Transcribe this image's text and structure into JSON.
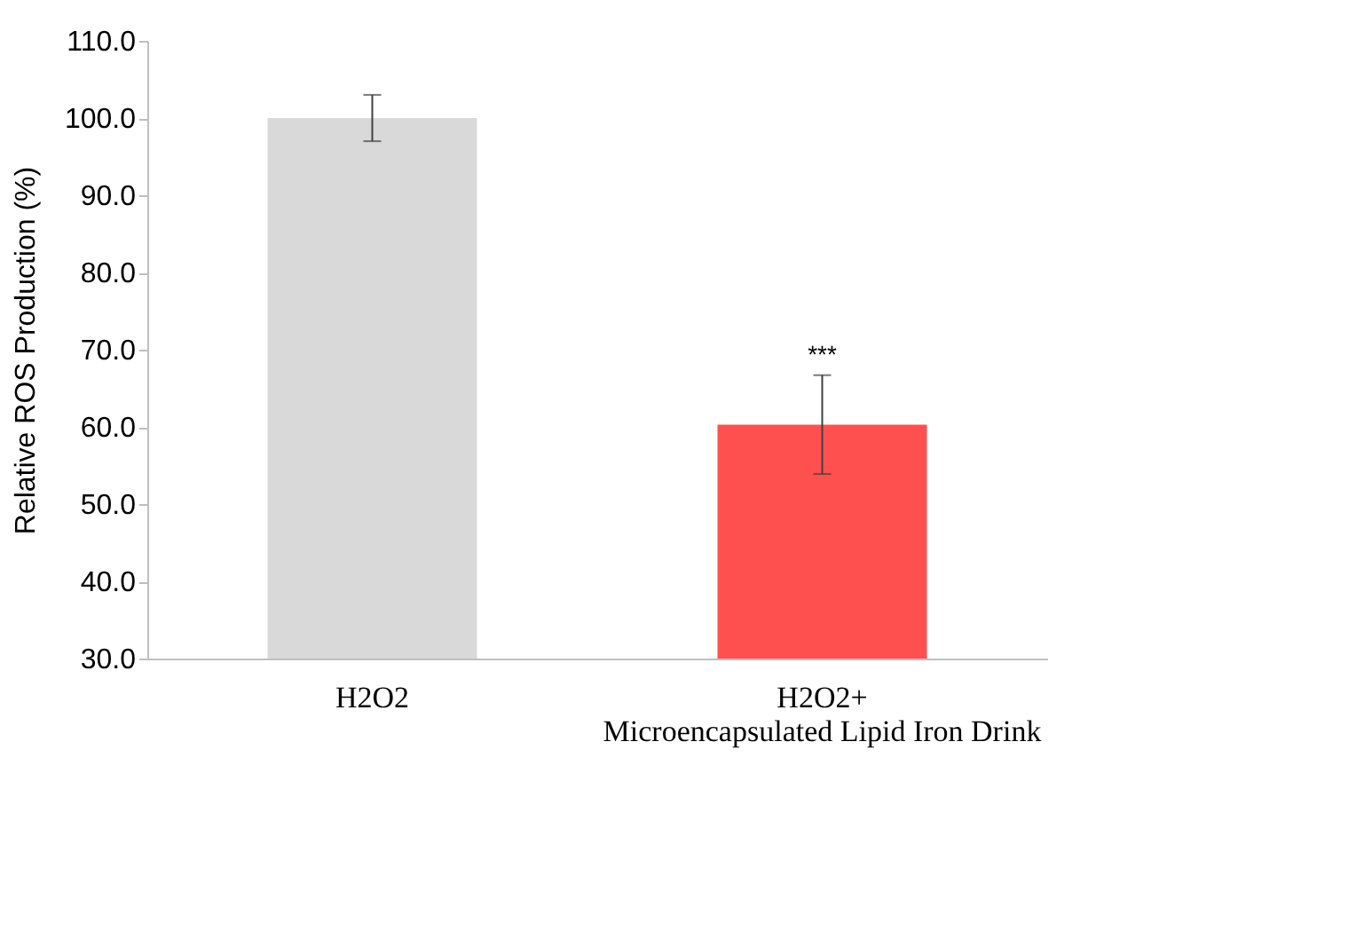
{
  "chart_data": {
    "type": "bar",
    "categories": [
      "H2O2",
      "H2O2+\nMicroencapsulated  Lipid Iron Drink"
    ],
    "values": [
      100.0,
      60.3
    ],
    "colors": [
      "#d9d9d9",
      "#ff5050"
    ],
    "errors": [
      3.0,
      6.4
    ],
    "ylabel": "Relative ROS Production (%)",
    "ylim": [
      30,
      110
    ],
    "yticks": [
      {
        "value": 30,
        "label": "30.0"
      },
      {
        "value": 40,
        "label": "40.0"
      },
      {
        "value": 50,
        "label": "50.0"
      },
      {
        "value": 60,
        "label": "60.0"
      },
      {
        "value": 70,
        "label": "70.0"
      },
      {
        "value": 80,
        "label": "80.0"
      },
      {
        "value": 90,
        "label": "90.0"
      },
      {
        "value": 100,
        "label": "100.0"
      },
      {
        "value": 110,
        "label": "110.0"
      }
    ],
    "annotations": [
      "***"
    ],
    "grid": false,
    "legend": false
  }
}
